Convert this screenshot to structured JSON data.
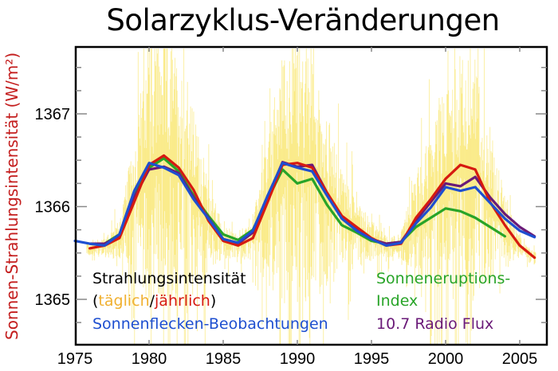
{
  "chart_data": {
    "type": "line",
    "title": "Solarzyklus-Veränderungen",
    "xlabel": "",
    "ylabel": "Sonnen-Strahlungsintensität (W/m²)",
    "xlim": [
      1975,
      2007
    ],
    "ylim": [
      1364.5,
      1367.7
    ],
    "x_ticks": [
      1975,
      1980,
      1985,
      1990,
      1995,
      2000,
      2005
    ],
    "y_ticks": [
      1365,
      1366,
      1367
    ],
    "grid": false,
    "legend_position": "inside-bottom",
    "x": [
      1975,
      1976,
      1977,
      1978,
      1979,
      1980,
      1981,
      1982,
      1983,
      1984,
      1985,
      1986,
      1987,
      1988,
      1989,
      1990,
      1991,
      1992,
      1993,
      1994,
      1995,
      1996,
      1997,
      1998,
      1999,
      2000,
      2001,
      2002,
      2003,
      2004,
      2005,
      2006
    ],
    "series": [
      {
        "name": "Strahlungsintensität (jährlich)",
        "color": "#d61a10",
        "values": [
          null,
          1365.55,
          1365.58,
          1365.66,
          1366.05,
          1366.45,
          1366.55,
          1366.42,
          1366.18,
          1365.85,
          1365.63,
          1365.58,
          1365.66,
          1366.05,
          1366.45,
          1366.47,
          1366.42,
          1366.15,
          1365.9,
          1365.78,
          1365.66,
          1365.58,
          1365.6,
          1365.88,
          1366.08,
          1366.3,
          1366.45,
          1366.4,
          1366.05,
          1365.8,
          1365.58,
          1365.45
        ]
      },
      {
        "name": "Sonnenflecken-Beobachtungen",
        "color": "#1e4fd0",
        "values": [
          1365.63,
          1365.6,
          1365.58,
          1365.7,
          1366.17,
          1366.47,
          1366.42,
          1366.34,
          1366.08,
          1365.87,
          1365.65,
          1365.61,
          1365.74,
          1366.12,
          1366.47,
          1366.42,
          1366.38,
          1366.12,
          1365.87,
          1365.74,
          1365.65,
          1365.58,
          1365.61,
          1365.82,
          1365.99,
          1366.21,
          1366.17,
          1366.21,
          1366.04,
          1365.87,
          1365.74,
          1365.67
        ]
      },
      {
        "name": "Sonneneruptions-Index",
        "color": "#28a428",
        "values": [
          null,
          null,
          1365.6,
          1365.7,
          1366.12,
          1366.42,
          1366.52,
          1366.38,
          1366.12,
          1365.9,
          1365.7,
          1365.64,
          1365.75,
          1366.08,
          1366.4,
          1366.25,
          1366.3,
          1366.02,
          1365.8,
          1365.72,
          1365.63,
          1365.6,
          1365.62,
          1365.78,
          1365.88,
          1365.98,
          1365.95,
          1365.88,
          1365.78,
          1365.68,
          null,
          null
        ]
      },
      {
        "name": "10.7 Radio Flux",
        "color": "#6a1a78",
        "values": [
          null,
          1365.6,
          1365.6,
          1365.68,
          1366.1,
          1366.4,
          1366.43,
          1366.36,
          1366.1,
          1365.88,
          1365.65,
          1365.6,
          1365.72,
          1366.1,
          1366.48,
          1366.43,
          1366.45,
          1366.15,
          1365.88,
          1365.75,
          1365.65,
          1365.6,
          1365.62,
          1365.85,
          1366.05,
          1366.25,
          1366.22,
          1366.32,
          1366.1,
          1365.92,
          1365.78,
          1365.68
        ]
      }
    ],
    "daily_series": {
      "name": "Strahlungsintensität (täglich)",
      "color": "#f8e04a",
      "note": "dense daily noise band around annual curve, spikes up to ~1367.7 near solar maxima"
    }
  },
  "legend": {
    "irradiance_label": "Strahlungsintensität",
    "paren_open": "(",
    "daily_label": "täglich",
    "slash": "/",
    "annual_label": "jährlich",
    "paren_close": ")",
    "sunspot_label": "Sonnenflecken-Beobachtungen",
    "flare_label_1": "Sonneneruptions-",
    "flare_label_2": "Index",
    "radio_label": "10.7 Radio Flux"
  },
  "colors": {
    "daily": "#f5c842",
    "annual": "#d61a10",
    "sunspot": "#1e4fd0",
    "flare": "#28a428",
    "radio": "#6a1a78",
    "ylabel": "#c41e1e"
  }
}
